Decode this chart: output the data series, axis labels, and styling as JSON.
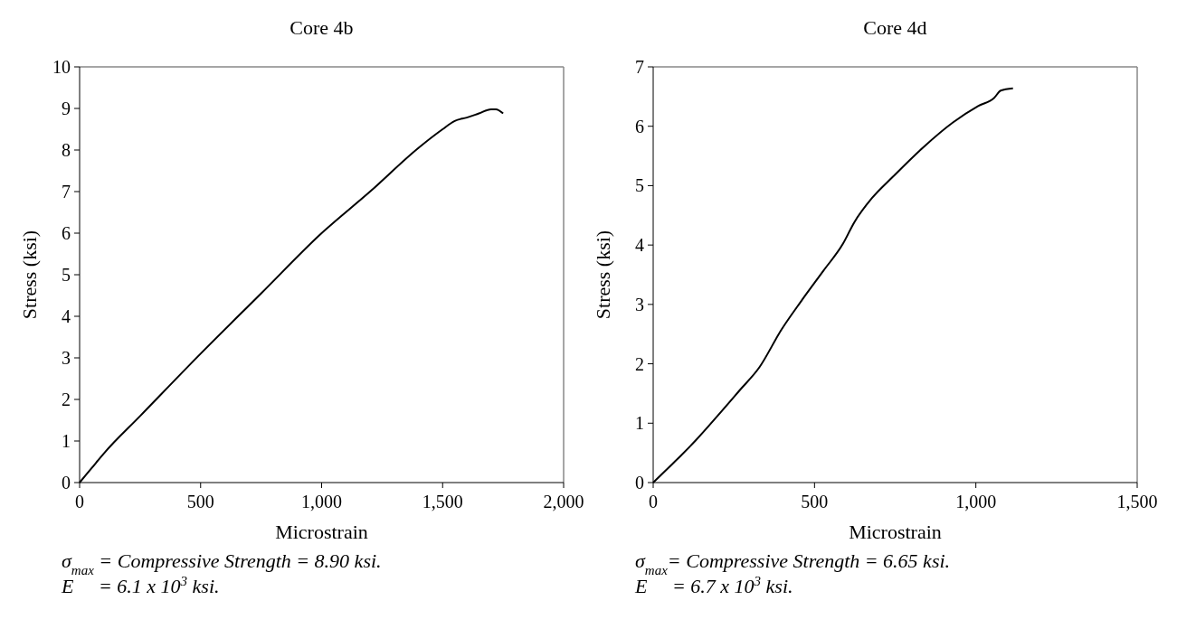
{
  "chart_data": [
    {
      "type": "line",
      "title": "Core 4b",
      "xlabel": "Microstrain",
      "ylabel": "Stress (ksi)",
      "xlim": [
        0,
        2000
      ],
      "ylim": [
        0,
        10
      ],
      "xticks": [
        0,
        {
          "value": 500,
          "label": "500"
        },
        {
          "value": 1000,
          "label": "1,000"
        },
        {
          "value": 1500,
          "label": "1,500"
        },
        {
          "value": 2000,
          "label": "2,000"
        }
      ],
      "yticks": [
        0,
        1,
        2,
        3,
        4,
        5,
        6,
        7,
        8,
        9,
        10
      ],
      "grid": false,
      "series": [
        {
          "color": "#000000",
          "x": [
            0,
            50,
            100,
            250,
            500,
            750,
            1000,
            1200,
            1400,
            1500,
            1550,
            1600,
            1650,
            1700,
            1720,
            1750
          ],
          "values": [
            0,
            0.35,
            0.7,
            1.6,
            3.1,
            4.55,
            6.0,
            7.0,
            8.05,
            8.5,
            8.7,
            8.78,
            8.88,
            8.98,
            8.98,
            8.88
          ]
        }
      ],
      "annotations": [
        "σ$_{max}$ = Compressive Strength = 8.90 ksi.",
        "E     = 6.1 x 10$^{3}$ ksi."
      ]
    },
    {
      "type": "line",
      "title": "Core 4d",
      "xlabel": "Microstrain",
      "ylabel": "Stress (ksi)",
      "xlim": [
        0,
        1500
      ],
      "ylim": [
        0,
        7
      ],
      "xticks": [
        0,
        {
          "value": 500,
          "label": "500"
        },
        {
          "value": 1000,
          "label": "1,000"
        },
        {
          "value": 1500,
          "label": "1,500"
        }
      ],
      "yticks": [
        0,
        1,
        2,
        3,
        4,
        5,
        6,
        7
      ],
      "grid": false,
      "series": [
        {
          "color": "#000000",
          "x": [
            0,
            55,
            85,
            130,
            199,
            269,
            329,
            398,
            458,
            528,
            588,
            623,
            678,
            743,
            838,
            928,
            1007,
            1057,
            1077,
            1115
          ],
          "values": [
            0,
            0.29,
            0.45,
            0.7,
            1.12,
            1.56,
            1.94,
            2.58,
            3.05,
            3.57,
            4.02,
            4.38,
            4.79,
            5.15,
            5.65,
            6.06,
            6.34,
            6.48,
            6.6,
            6.64
          ]
        }
      ],
      "annotations": [
        "σ$_{max}$= Compressive Strength = 6.65 ksi.",
        "E     = 6.7 x 10$^{3}$ ksi."
      ]
    }
  ]
}
